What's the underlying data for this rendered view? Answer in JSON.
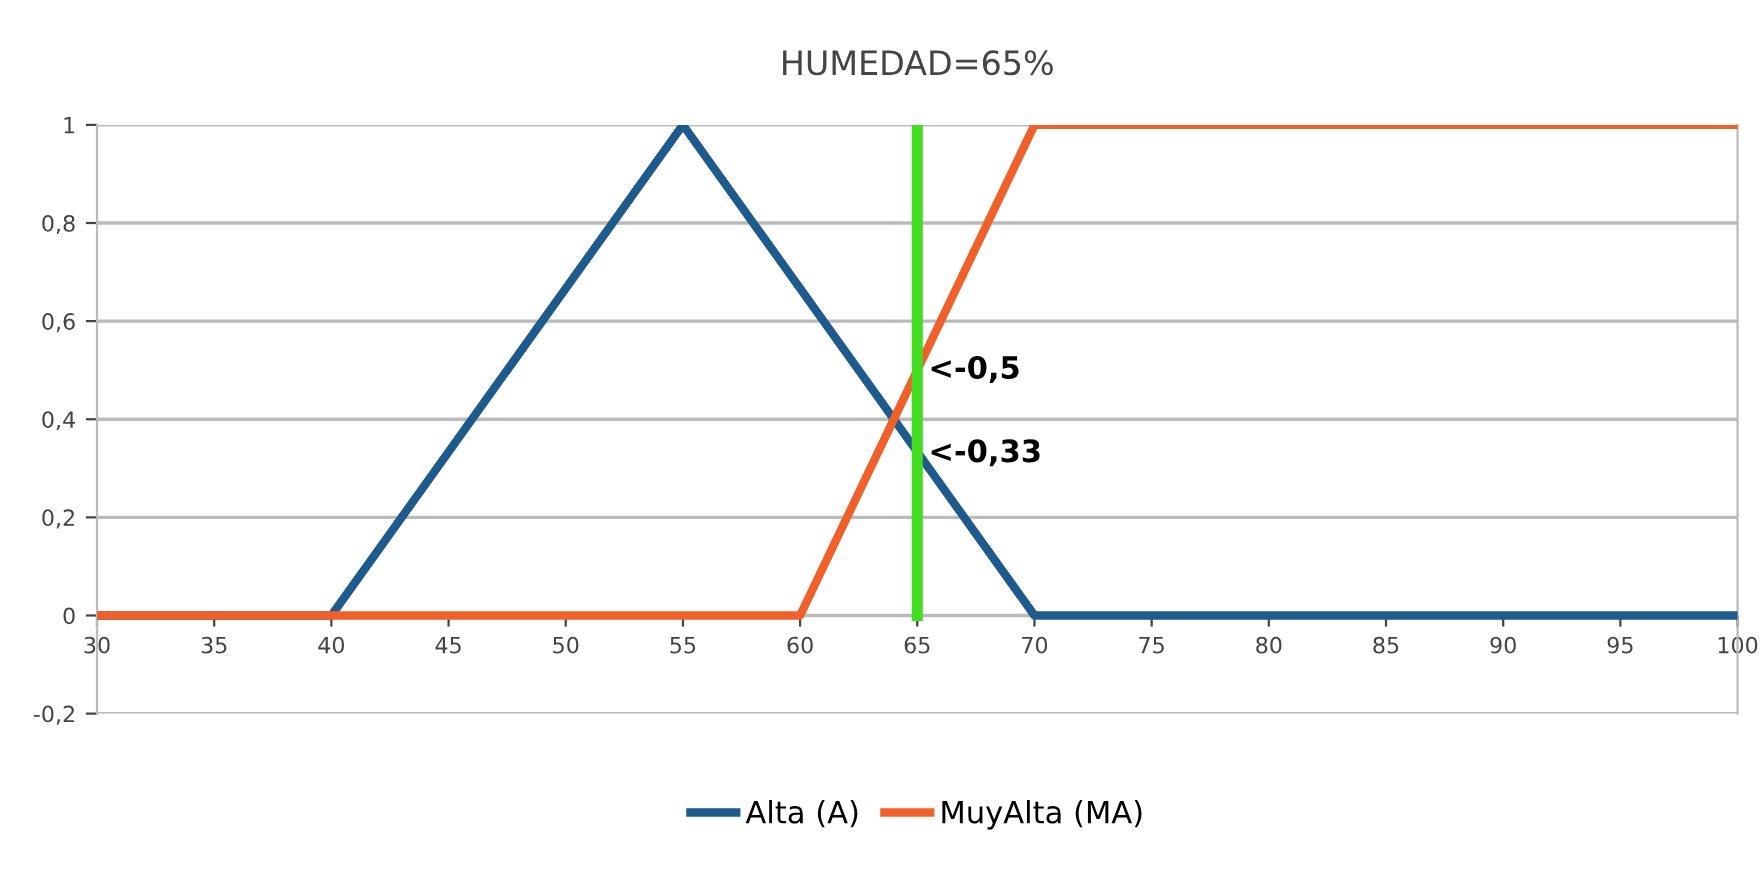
{
  "chart_data": {
    "type": "line",
    "title": "HUMEDAD=65%",
    "series": [
      {
        "name": "Alta (A)",
        "color": "#1f5a8c",
        "x": [
          30,
          40,
          55,
          70,
          100
        ],
        "values": [
          0,
          0,
          1,
          0,
          0
        ]
      },
      {
        "name": "MuyAlta (MA)",
        "color": "#f0602a",
        "x": [
          30,
          60,
          70,
          100
        ],
        "values": [
          0,
          0,
          1,
          1
        ]
      }
    ],
    "xlim": [
      30,
      100
    ],
    "xticks": [
      30,
      35,
      40,
      45,
      50,
      55,
      60,
      65,
      70,
      75,
      80,
      85,
      90,
      95,
      100
    ],
    "ylim": [
      -0.2,
      1
    ],
    "yticks": [
      {
        "value": -0.2,
        "label": "-0,2"
      },
      0,
      {
        "value": 0.2,
        "label": "0,2"
      },
      {
        "value": 0.4,
        "label": "0,4"
      },
      {
        "value": 0.6,
        "label": "0,6"
      },
      {
        "value": 0.8,
        "label": "0,8"
      },
      1
    ],
    "ref_lines": [
      {
        "axis": "x",
        "value": 65,
        "color": "#44dd22"
      }
    ],
    "annotations": [
      {
        "text": "<-0,5",
        "x": 65,
        "y": 0.5
      },
      {
        "text": "<-0,33",
        "x": 65,
        "y": 0.33
      }
    ],
    "grid": "y",
    "legend": "bottom",
    "marker": "none",
    "line_style": "solid"
  }
}
